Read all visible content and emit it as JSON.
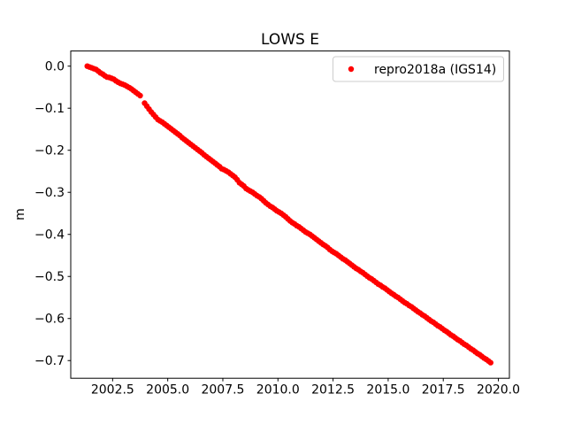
{
  "figure_title": "LOWS E",
  "chart_data": {
    "type": "scatter",
    "title": "LOWS E",
    "xlabel": "",
    "ylabel": "m",
    "grid": false,
    "xlim": [
      2000.6,
      2020.5
    ],
    "ylim": [
      -0.742,
      0.036
    ],
    "x_ticks": [
      2002.5,
      2005.0,
      2007.5,
      2010.0,
      2012.5,
      2015.0,
      2017.5,
      2020.0
    ],
    "x_tick_labels": [
      "2002.5",
      "2005.0",
      "2007.5",
      "2010.0",
      "2012.5",
      "2015.0",
      "2017.5",
      "2020.0"
    ],
    "y_ticks": [
      0.0,
      -0.1,
      -0.2,
      -0.3,
      -0.4,
      -0.5,
      -0.6,
      -0.7
    ],
    "y_tick_labels": [
      "0.0",
      "−0.1",
      "−0.2",
      "−0.3",
      "−0.4",
      "−0.5",
      "−0.6",
      "−0.7"
    ],
    "legend": {
      "position": "upper right",
      "entries": [
        {
          "label": "repro2018a (IGS14)",
          "color": "#ff0000",
          "marker": "dot"
        }
      ]
    },
    "series": [
      {
        "name": "repro2018a (IGS14)",
        "color": "#ff0000",
        "marker": "point",
        "marker_radius_px": 3.2,
        "points": [
          [
            2001.35,
            0.0
          ],
          [
            2001.45,
            -0.002
          ],
          [
            2001.55,
            -0.004
          ],
          [
            2001.65,
            -0.006
          ],
          [
            2001.75,
            -0.008
          ],
          [
            2001.85,
            -0.012
          ],
          [
            2001.95,
            -0.016
          ],
          [
            2002.05,
            -0.019
          ],
          [
            2002.15,
            -0.023
          ],
          [
            2002.25,
            -0.026
          ],
          [
            2002.35,
            -0.027
          ],
          [
            2002.45,
            -0.029
          ],
          [
            2002.55,
            -0.031
          ],
          [
            2002.65,
            -0.035
          ],
          [
            2002.75,
            -0.038
          ],
          [
            2002.85,
            -0.041
          ],
          [
            2002.95,
            -0.043
          ],
          [
            2003.05,
            -0.045
          ],
          [
            2003.15,
            -0.048
          ],
          [
            2003.25,
            -0.051
          ],
          [
            2003.35,
            -0.054
          ],
          [
            2003.45,
            -0.058
          ],
          [
            2003.55,
            -0.062
          ],
          [
            2003.65,
            -0.066
          ],
          [
            2003.75,
            -0.07
          ],
          [
            2003.95,
            -0.088
          ],
          [
            2004.05,
            -0.095
          ],
          [
            2004.15,
            -0.102
          ],
          [
            2004.25,
            -0.109
          ],
          [
            2004.35,
            -0.115
          ],
          [
            2004.45,
            -0.121
          ],
          [
            2004.55,
            -0.127
          ],
          [
            2004.65,
            -0.13
          ],
          [
            2004.75,
            -0.133
          ],
          [
            2004.85,
            -0.137
          ],
          [
            2004.95,
            -0.141
          ],
          [
            2005.05,
            -0.145
          ],
          [
            2005.15,
            -0.149
          ],
          [
            2005.25,
            -0.153
          ],
          [
            2005.35,
            -0.157
          ],
          [
            2005.45,
            -0.161
          ],
          [
            2005.55,
            -0.165
          ],
          [
            2005.65,
            -0.17
          ],
          [
            2005.75,
            -0.174
          ],
          [
            2005.85,
            -0.178
          ],
          [
            2005.95,
            -0.182
          ],
          [
            2006.05,
            -0.186
          ],
          [
            2006.15,
            -0.19
          ],
          [
            2006.25,
            -0.194
          ],
          [
            2006.35,
            -0.198
          ],
          [
            2006.45,
            -0.202
          ],
          [
            2006.55,
            -0.206
          ],
          [
            2006.65,
            -0.211
          ],
          [
            2006.75,
            -0.215
          ],
          [
            2006.85,
            -0.219
          ],
          [
            2006.95,
            -0.223
          ],
          [
            2007.05,
            -0.227
          ],
          [
            2007.15,
            -0.231
          ],
          [
            2007.25,
            -0.235
          ],
          [
            2007.35,
            -0.239
          ],
          [
            2007.45,
            -0.244
          ],
          [
            2007.55,
            -0.246
          ],
          [
            2007.65,
            -0.249
          ],
          [
            2007.75,
            -0.252
          ],
          [
            2007.85,
            -0.256
          ],
          [
            2007.95,
            -0.26
          ],
          [
            2008.05,
            -0.264
          ],
          [
            2008.15,
            -0.27
          ],
          [
            2008.25,
            -0.277
          ],
          [
            2008.35,
            -0.281
          ],
          [
            2008.45,
            -0.285
          ],
          [
            2008.55,
            -0.291
          ],
          [
            2008.65,
            -0.294
          ],
          [
            2008.75,
            -0.297
          ],
          [
            2008.85,
            -0.3
          ],
          [
            2008.95,
            -0.304
          ],
          [
            2009.05,
            -0.308
          ],
          [
            2009.15,
            -0.311
          ],
          [
            2009.25,
            -0.315
          ],
          [
            2009.35,
            -0.32
          ],
          [
            2009.45,
            -0.325
          ],
          [
            2009.55,
            -0.329
          ],
          [
            2009.65,
            -0.333
          ],
          [
            2009.75,
            -0.336
          ],
          [
            2009.85,
            -0.34
          ],
          [
            2009.95,
            -0.344
          ],
          [
            2010.05,
            -0.347
          ],
          [
            2010.15,
            -0.35
          ],
          [
            2010.25,
            -0.354
          ],
          [
            2010.35,
            -0.358
          ],
          [
            2010.45,
            -0.363
          ],
          [
            2010.55,
            -0.368
          ],
          [
            2010.65,
            -0.372
          ],
          [
            2010.75,
            -0.375
          ],
          [
            2010.85,
            -0.379
          ],
          [
            2010.95,
            -0.382
          ],
          [
            2011.05,
            -0.386
          ],
          [
            2011.15,
            -0.39
          ],
          [
            2011.25,
            -0.394
          ],
          [
            2011.35,
            -0.397
          ],
          [
            2011.45,
            -0.4
          ],
          [
            2011.55,
            -0.404
          ],
          [
            2011.65,
            -0.408
          ],
          [
            2011.75,
            -0.412
          ],
          [
            2011.85,
            -0.416
          ],
          [
            2011.95,
            -0.42
          ],
          [
            2012.05,
            -0.424
          ],
          [
            2012.15,
            -0.427
          ],
          [
            2012.25,
            -0.431
          ],
          [
            2012.35,
            -0.436
          ],
          [
            2012.45,
            -0.44
          ],
          [
            2012.55,
            -0.443
          ],
          [
            2012.65,
            -0.446
          ],
          [
            2012.75,
            -0.45
          ],
          [
            2012.85,
            -0.454
          ],
          [
            2012.95,
            -0.458
          ],
          [
            2013.05,
            -0.461
          ],
          [
            2013.15,
            -0.465
          ],
          [
            2013.25,
            -0.469
          ],
          [
            2013.35,
            -0.473
          ],
          [
            2013.45,
            -0.477
          ],
          [
            2013.55,
            -0.481
          ],
          [
            2013.65,
            -0.484
          ],
          [
            2013.75,
            -0.488
          ],
          [
            2013.85,
            -0.491
          ],
          [
            2013.95,
            -0.495
          ],
          [
            2014.05,
            -0.499
          ],
          [
            2014.15,
            -0.503
          ],
          [
            2014.25,
            -0.506
          ],
          [
            2014.35,
            -0.51
          ],
          [
            2014.45,
            -0.514
          ],
          [
            2014.55,
            -0.518
          ],
          [
            2014.65,
            -0.521
          ],
          [
            2014.75,
            -0.525
          ],
          [
            2014.85,
            -0.528
          ],
          [
            2014.95,
            -0.532
          ],
          [
            2015.05,
            -0.536
          ],
          [
            2015.15,
            -0.54
          ],
          [
            2015.25,
            -0.543
          ],
          [
            2015.35,
            -0.547
          ],
          [
            2015.45,
            -0.55
          ],
          [
            2015.55,
            -0.554
          ],
          [
            2015.65,
            -0.558
          ],
          [
            2015.75,
            -0.562
          ],
          [
            2015.85,
            -0.565
          ],
          [
            2015.95,
            -0.569
          ],
          [
            2016.05,
            -0.572
          ],
          [
            2016.15,
            -0.576
          ],
          [
            2016.25,
            -0.58
          ],
          [
            2016.35,
            -0.584
          ],
          [
            2016.45,
            -0.587
          ],
          [
            2016.55,
            -0.591
          ],
          [
            2016.65,
            -0.594
          ],
          [
            2016.75,
            -0.598
          ],
          [
            2016.85,
            -0.602
          ],
          [
            2016.95,
            -0.606
          ],
          [
            2017.05,
            -0.609
          ],
          [
            2017.15,
            -0.613
          ],
          [
            2017.25,
            -0.617
          ],
          [
            2017.35,
            -0.62
          ],
          [
            2017.45,
            -0.624
          ],
          [
            2017.55,
            -0.628
          ],
          [
            2017.65,
            -0.631
          ],
          [
            2017.75,
            -0.635
          ],
          [
            2017.85,
            -0.639
          ],
          [
            2017.95,
            -0.642
          ],
          [
            2018.05,
            -0.646
          ],
          [
            2018.15,
            -0.65
          ],
          [
            2018.25,
            -0.653
          ],
          [
            2018.35,
            -0.657
          ],
          [
            2018.45,
            -0.661
          ],
          [
            2018.55,
            -0.664
          ],
          [
            2018.65,
            -0.668
          ],
          [
            2018.75,
            -0.672
          ],
          [
            2018.85,
            -0.675
          ],
          [
            2018.95,
            -0.679
          ],
          [
            2019.05,
            -0.683
          ],
          [
            2019.15,
            -0.686
          ],
          [
            2019.25,
            -0.69
          ],
          [
            2019.35,
            -0.694
          ],
          [
            2019.45,
            -0.697
          ],
          [
            2019.55,
            -0.701
          ],
          [
            2019.65,
            -0.705
          ]
        ]
      }
    ]
  }
}
